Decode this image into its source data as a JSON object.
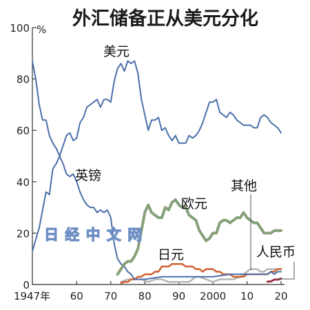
{
  "chart_data": {
    "type": "line",
    "title": "外汇储备正从美元分化",
    "y_unit": "%",
    "xlim": [
      1947,
      2021
    ],
    "ylim": [
      0,
      100
    ],
    "y_ticks": [
      "0",
      "20",
      "40",
      "60",
      "80",
      "100"
    ],
    "x_ticks": [
      {
        "x": 1947,
        "label": "1947年"
      },
      {
        "x": 1960,
        "label": "60"
      },
      {
        "x": 1970,
        "label": "70"
      },
      {
        "x": 1980,
        "label": "80"
      },
      {
        "x": 1990,
        "label": "90"
      },
      {
        "x": 2000,
        "label": "2000"
      },
      {
        "x": 2010,
        "label": "10"
      },
      {
        "x": 2020,
        "label": "20"
      }
    ],
    "series": [
      {
        "name": "美元",
        "color": "#4a6ea8",
        "points": [
          [
            1947,
            13
          ],
          [
            1949,
            22
          ],
          [
            1951,
            36
          ],
          [
            1952,
            35
          ],
          [
            1953,
            45
          ],
          [
            1954,
            47
          ],
          [
            1955,
            50
          ],
          [
            1956,
            54
          ],
          [
            1957,
            58
          ],
          [
            1958,
            59
          ],
          [
            1959,
            56
          ],
          [
            1960,
            57
          ],
          [
            1961,
            63
          ],
          [
            1962,
            65
          ],
          [
            1963,
            69
          ],
          [
            1964,
            70
          ],
          [
            1965,
            71
          ],
          [
            1966,
            72
          ],
          [
            1967,
            69
          ],
          [
            1968,
            72
          ],
          [
            1969,
            72
          ],
          [
            1970,
            71
          ],
          [
            1971,
            79
          ],
          [
            1972,
            84
          ],
          [
            1973,
            86
          ],
          [
            1974,
            83
          ],
          [
            1975,
            87
          ],
          [
            1976,
            86
          ],
          [
            1977,
            87
          ],
          [
            1978,
            82
          ],
          [
            1979,
            72
          ],
          [
            1980,
            66
          ],
          [
            1981,
            60
          ],
          [
            1982,
            64
          ],
          [
            1983,
            64
          ],
          [
            1984,
            65
          ],
          [
            1985,
            60
          ],
          [
            1986,
            61
          ],
          [
            1987,
            58
          ],
          [
            1988,
            56
          ],
          [
            1989,
            58
          ],
          [
            1990,
            55
          ],
          [
            1991,
            55
          ],
          [
            1992,
            55
          ],
          [
            1993,
            58
          ],
          [
            1994,
            57
          ],
          [
            1995,
            58
          ],
          [
            1996,
            60
          ],
          [
            1997,
            63
          ],
          [
            1998,
            67
          ],
          [
            1999,
            71
          ],
          [
            2000,
            71
          ],
          [
            2001,
            72
          ],
          [
            2002,
            67
          ],
          [
            2003,
            66
          ],
          [
            2004,
            65
          ],
          [
            2005,
            67
          ],
          [
            2006,
            66
          ],
          [
            2007,
            64
          ],
          [
            2008,
            63
          ],
          [
            2009,
            62
          ],
          [
            2010,
            62
          ],
          [
            2011,
            62
          ],
          [
            2012,
            61
          ],
          [
            2013,
            61
          ],
          [
            2014,
            65
          ],
          [
            2015,
            66
          ],
          [
            2016,
            65
          ],
          [
            2017,
            63
          ],
          [
            2018,
            62
          ],
          [
            2019,
            61
          ],
          [
            2020,
            59
          ]
        ]
      },
      {
        "name": "英镑",
        "color": "#4a6ea8",
        "points": [
          [
            1947,
            87
          ],
          [
            1948,
            80
          ],
          [
            1949,
            70
          ],
          [
            1950,
            64
          ],
          [
            1951,
            64
          ],
          [
            1952,
            58
          ],
          [
            1953,
            55
          ],
          [
            1954,
            53
          ],
          [
            1955,
            50
          ],
          [
            1956,
            47
          ],
          [
            1957,
            43
          ],
          [
            1958,
            42
          ],
          [
            1959,
            43
          ],
          [
            1960,
            40
          ],
          [
            1961,
            36
          ],
          [
            1962,
            33
          ],
          [
            1963,
            31
          ],
          [
            1964,
            30
          ],
          [
            1965,
            30
          ],
          [
            1966,
            28
          ],
          [
            1967,
            29
          ],
          [
            1968,
            28
          ],
          [
            1969,
            29
          ],
          [
            1970,
            26
          ],
          [
            1971,
            16
          ],
          [
            1972,
            10
          ],
          [
            1973,
            8
          ],
          [
            1974,
            7
          ],
          [
            1975,
            5
          ],
          [
            1976,
            4
          ],
          [
            1977,
            2
          ],
          [
            1978,
            2
          ],
          [
            1979,
            2
          ],
          [
            1980,
            2
          ],
          [
            1985,
            3
          ],
          [
            1990,
            3
          ],
          [
            1995,
            3
          ],
          [
            2000,
            3
          ],
          [
            2005,
            4
          ],
          [
            2008,
            4
          ],
          [
            2009,
            4
          ],
          [
            2010,
            4
          ],
          [
            2012,
            4
          ],
          [
            2014,
            4
          ],
          [
            2016,
            4
          ],
          [
            2017,
            5
          ],
          [
            2018,
            4
          ],
          [
            2019,
            5
          ],
          [
            2020,
            5
          ]
        ]
      },
      {
        "name": "欧元",
        "color": "#86a07a",
        "points": [
          [
            1972,
            4
          ],
          [
            1973,
            6
          ],
          [
            1974,
            8
          ],
          [
            1975,
            9
          ],
          [
            1976,
            9
          ],
          [
            1977,
            11
          ],
          [
            1978,
            14
          ],
          [
            1979,
            21
          ],
          [
            1980,
            28
          ],
          [
            1981,
            31
          ],
          [
            1982,
            28
          ],
          [
            1983,
            27
          ],
          [
            1984,
            26
          ],
          [
            1985,
            26
          ],
          [
            1986,
            30
          ],
          [
            1987,
            29
          ],
          [
            1988,
            32
          ],
          [
            1989,
            33
          ],
          [
            1990,
            31
          ],
          [
            1991,
            30
          ],
          [
            1992,
            30
          ],
          [
            1993,
            27
          ],
          [
            1994,
            26
          ],
          [
            1995,
            25
          ],
          [
            1996,
            21
          ],
          [
            1997,
            19
          ],
          [
            1998,
            17
          ],
          [
            1999,
            18
          ],
          [
            2000,
            20
          ],
          [
            2001,
            20
          ],
          [
            2002,
            24
          ],
          [
            2003,
            25
          ],
          [
            2004,
            25
          ],
          [
            2005,
            24
          ],
          [
            2006,
            25
          ],
          [
            2007,
            26
          ],
          [
            2008,
            26
          ],
          [
            2009,
            28
          ],
          [
            2010,
            26
          ],
          [
            2011,
            25
          ],
          [
            2012,
            24
          ],
          [
            2013,
            24
          ],
          [
            2014,
            22
          ],
          [
            2015,
            20
          ],
          [
            2016,
            20
          ],
          [
            2017,
            20
          ],
          [
            2018,
            21
          ],
          [
            2019,
            21
          ],
          [
            2020,
            21
          ]
        ]
      },
      {
        "name": "日元",
        "color": "#cf5f2e",
        "points": [
          [
            1973,
            0.5
          ],
          [
            1974,
            1
          ],
          [
            1975,
            1
          ],
          [
            1976,
            2
          ],
          [
            1977,
            2
          ],
          [
            1978,
            3
          ],
          [
            1979,
            3
          ],
          [
            1980,
            4
          ],
          [
            1981,
            4
          ],
          [
            1982,
            4
          ],
          [
            1983,
            5
          ],
          [
            1984,
            5
          ],
          [
            1985,
            7
          ],
          [
            1986,
            7
          ],
          [
            1987,
            7
          ],
          [
            1988,
            8
          ],
          [
            1989,
            8
          ],
          [
            1990,
            8
          ],
          [
            1991,
            8
          ],
          [
            1992,
            7
          ],
          [
            1993,
            7
          ],
          [
            1994,
            7
          ],
          [
            1995,
            6
          ],
          [
            1996,
            6
          ],
          [
            1997,
            5
          ],
          [
            1998,
            6
          ],
          [
            1999,
            6
          ],
          [
            2000,
            6
          ],
          [
            2001,
            5
          ],
          [
            2002,
            5
          ],
          [
            2003,
            4
          ],
          [
            2004,
            4
          ],
          [
            2005,
            4
          ],
          [
            2006,
            3
          ],
          [
            2007,
            3
          ],
          [
            2008,
            3
          ],
          [
            2009,
            3
          ],
          [
            2010,
            4
          ],
          [
            2011,
            4
          ],
          [
            2012,
            4
          ],
          [
            2013,
            4
          ],
          [
            2014,
            4
          ],
          [
            2015,
            4
          ],
          [
            2016,
            4
          ],
          [
            2017,
            5
          ],
          [
            2018,
            5
          ],
          [
            2019,
            6
          ],
          [
            2020,
            6
          ]
        ]
      },
      {
        "name": "其他",
        "color": "#b5b5b5",
        "points": [
          [
            1973,
            1
          ],
          [
            1975,
            2
          ],
          [
            1977,
            2
          ],
          [
            1979,
            2
          ],
          [
            1981,
            1
          ],
          [
            1983,
            2
          ],
          [
            1985,
            2
          ],
          [
            1987,
            1
          ],
          [
            1989,
            1
          ],
          [
            1991,
            1
          ],
          [
            1993,
            1
          ],
          [
            1995,
            3
          ],
          [
            1996,
            3
          ],
          [
            1998,
            2
          ],
          [
            2000,
            1
          ],
          [
            2002,
            2
          ],
          [
            2004,
            2
          ],
          [
            2006,
            2
          ],
          [
            2008,
            3
          ],
          [
            2010,
            5
          ],
          [
            2011,
            6
          ],
          [
            2012,
            6
          ],
          [
            2013,
            6
          ],
          [
            2014,
            5
          ],
          [
            2015,
            5
          ],
          [
            2016,
            6
          ],
          [
            2017,
            6
          ],
          [
            2018,
            6
          ],
          [
            2019,
            6
          ],
          [
            2020,
            6
          ]
        ]
      },
      {
        "name": "人民币",
        "color": "#a03048",
        "points": [
          [
            2016,
            1.1
          ],
          [
            2017,
            1.2
          ],
          [
            2018,
            1.9
          ],
          [
            2019,
            1.9
          ],
          [
            2020,
            2.3
          ]
        ]
      }
    ],
    "annotations": [
      "日 经 中 文 网"
    ]
  }
}
